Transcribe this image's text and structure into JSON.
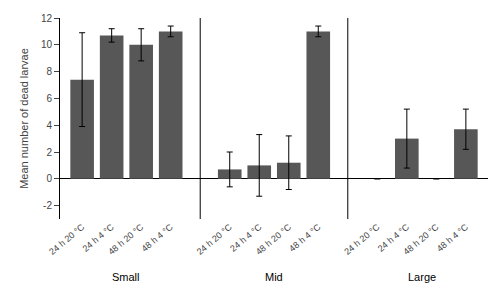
{
  "chart_data": {
    "type": "bar",
    "groups": [
      "Small",
      "Mid",
      "Large"
    ],
    "categories": [
      "24 h 20 °C",
      "24 h 4 °C",
      "48 h 20 °C",
      "48 h 4 °C"
    ],
    "values": [
      [
        7.4,
        10.7,
        10.0,
        11.0
      ],
      [
        0.7,
        1.0,
        1.2,
        11.0
      ],
      [
        0.0,
        3.0,
        0.0,
        3.7
      ]
    ],
    "errors": [
      [
        3.5,
        0.5,
        1.2,
        0.4
      ],
      [
        1.3,
        2.3,
        2.0,
        0.4
      ],
      [
        0.0,
        2.2,
        0.0,
        1.5
      ]
    ],
    "color": "#575757",
    "ylabel": "Mean number of dead larvae",
    "ylim": [
      -3.0,
      12.0
    ],
    "yticks": [
      -2,
      0,
      2,
      4,
      6,
      8,
      10,
      12
    ],
    "grid": false
  }
}
